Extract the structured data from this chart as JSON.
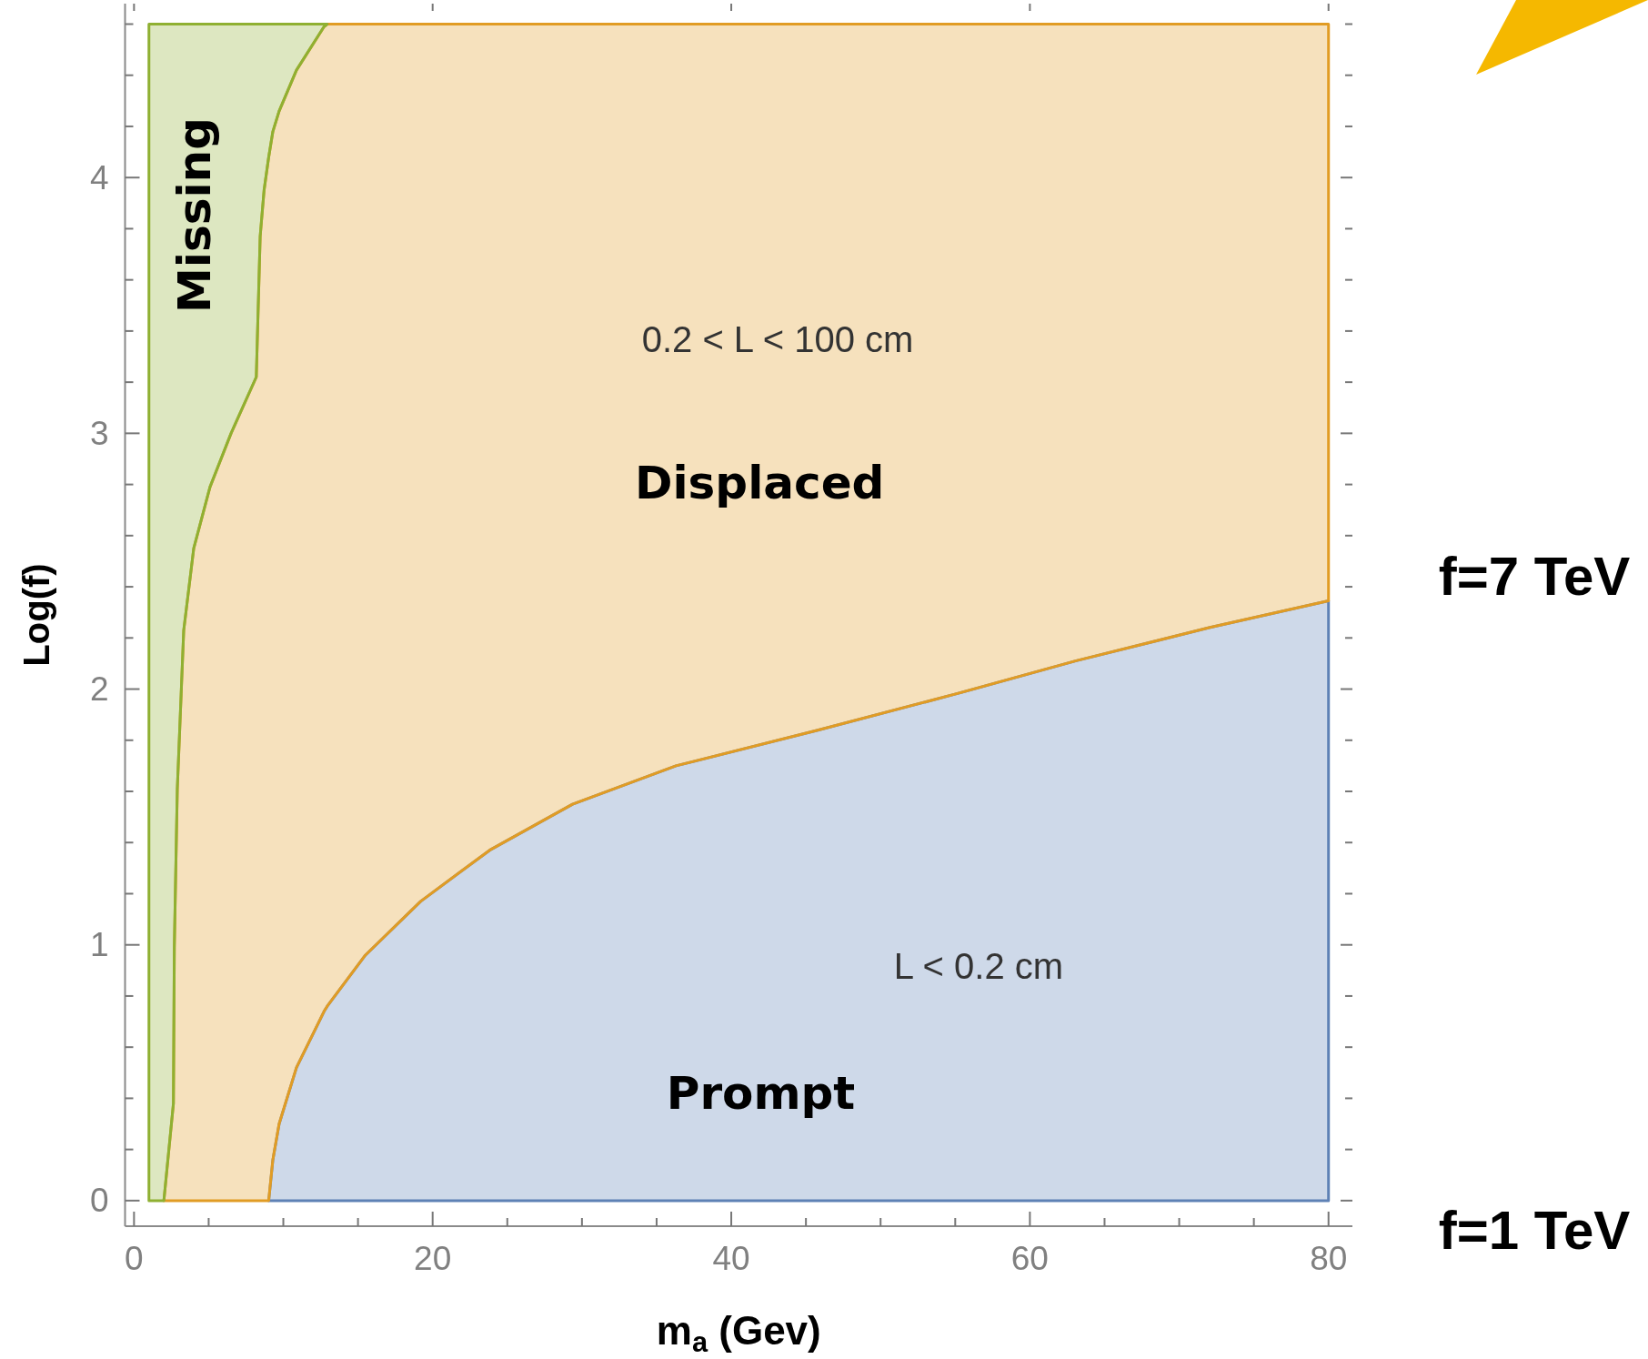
{
  "chart_data": {
    "type": "area",
    "stacked": true,
    "xlabel": "m$_{a}$ (Gev)",
    "ylabel": "Log(f)",
    "x": [
      1,
      2,
      2.64,
      2.7,
      2.9,
      3.33,
      4.0,
      5.09,
      6.5,
      8.19,
      8.45,
      8.71,
      9.02,
      9.3,
      9.72,
      10.88,
      12.73,
      12.94,
      15.5,
      19.2,
      23.82,
      29.37,
      36.3,
      45.85,
      54.98,
      63.05,
      72,
      80
    ],
    "series": [
      {
        "name": "Prompt",
        "color": "#5e81b5",
        "values": [
          null,
          null,
          null,
          null,
          null,
          null,
          null,
          null,
          null,
          null,
          null,
          null,
          0,
          0.16,
          0.3,
          0.52,
          0.74,
          0.76,
          0.96,
          1.17,
          1.37,
          1.55,
          1.7,
          1.84,
          1.98,
          2.11,
          2.24,
          2.345
        ]
      },
      {
        "name": "Displaced",
        "color": "#e19c24",
        "values": [
          null,
          0,
          0.38,
          0.99,
          1.61,
          2.23,
          2.55,
          2.79,
          3.0,
          3.22,
          3.77,
          3.95,
          4.08,
          4.02,
          3.96,
          3.9,
          3.85,
          3.84,
          3.64,
          3.43,
          3.23,
          3.05,
          2.9,
          2.76,
          2.62,
          2.49,
          2.36,
          2.255
        ]
      },
      {
        "name": "Missing",
        "color": "#8fb032",
        "values": [
          4.6,
          4.6,
          4.22,
          3.61,
          2.99,
          2.37,
          2.05,
          1.81,
          1.6,
          1.38,
          0.83,
          0.65,
          0.52,
          0.42,
          0.34,
          0.18,
          0.01,
          0,
          null,
          null,
          null,
          null,
          null,
          null,
          null,
          null,
          null,
          null
        ]
      }
    ],
    "xlim": [
      -0.6,
      81.6
    ],
    "ylim": [
      -0.1,
      4.68
    ],
    "xticks": [
      0,
      {
        "value": 5,
        "label": null
      },
      {
        "value": 10,
        "label": null
      },
      {
        "value": 15,
        "label": null
      },
      20,
      {
        "value": 25,
        "label": null
      },
      {
        "value": 30,
        "label": null
      },
      {
        "value": 35,
        "label": null
      },
      40,
      {
        "value": 45,
        "label": null
      },
      {
        "value": 50,
        "label": null
      },
      {
        "value": 55,
        "label": null
      },
      60,
      {
        "value": 65,
        "label": null
      },
      {
        "value": 70,
        "label": null
      },
      {
        "value": 75,
        "label": null
      },
      80
    ],
    "yticks": [
      0,
      {
        "value": 0.2,
        "label": null
      },
      {
        "value": 0.4,
        "label": null
      },
      {
        "value": 0.6,
        "label": null
      },
      {
        "value": 0.8,
        "label": null
      },
      1,
      {
        "value": 1.2,
        "label": null
      },
      {
        "value": 1.4,
        "label": null
      },
      {
        "value": 1.6,
        "label": null
      },
      {
        "value": 1.8,
        "label": null
      },
      2,
      {
        "value": 2.2,
        "label": null
      },
      {
        "value": 2.4,
        "label": null
      },
      {
        "value": 2.6,
        "label": null
      },
      {
        "value": 2.8,
        "label": null
      },
      3,
      {
        "value": 3.2,
        "label": null
      },
      {
        "value": 3.4,
        "label": null
      },
      {
        "value": 3.6,
        "label": null
      },
      {
        "value": 3.8,
        "label": null
      },
      4,
      {
        "value": 4.2,
        "label": null
      },
      {
        "value": 4.4,
        "label": null
      },
      {
        "value": 4.6,
        "label": null
      }
    ],
    "annotations": [
      "0.2 < L < 100 cm",
      "L < 0.2 cm",
      "f=7 TeV",
      "f=1 TeV"
    ]
  }
}
